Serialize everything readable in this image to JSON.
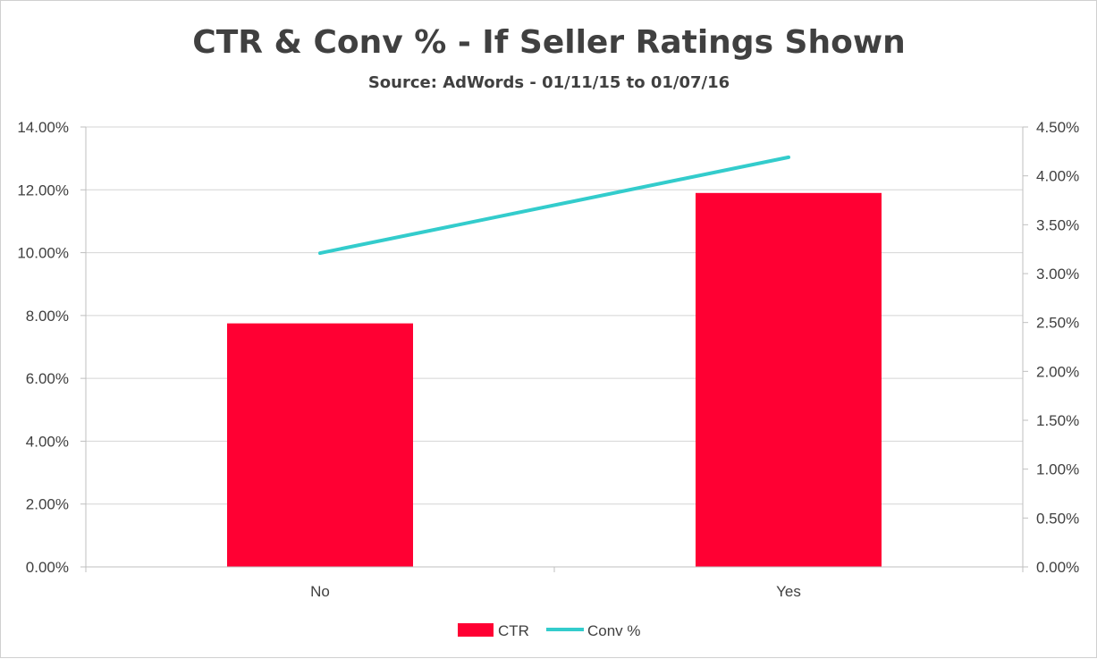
{
  "chart_data": {
    "type": "bar",
    "title": "CTR & Conv % - If Seller Ratings Shown",
    "subtitle": "Source: AdWords - 01/11/15 to 01/07/16",
    "categories": [
      "No",
      "Yes"
    ],
    "series": [
      {
        "name": "CTR",
        "type": "bar",
        "axis": "left",
        "values": [
          7.75,
          11.9
        ],
        "color": "#ff0033"
      },
      {
        "name": "Conv %",
        "type": "line",
        "axis": "right",
        "values": [
          3.21,
          4.19
        ],
        "color": "#33cccc"
      }
    ],
    "y_left": {
      "min": 0,
      "max": 14,
      "step": 2,
      "ticks": [
        "0.00%",
        "2.00%",
        "4.00%",
        "6.00%",
        "8.00%",
        "10.00%",
        "12.00%",
        "14.00%"
      ]
    },
    "y_right": {
      "min": 0,
      "max": 4.5,
      "step": 0.5,
      "ticks": [
        "0.00%",
        "0.50%",
        "1.00%",
        "1.50%",
        "2.00%",
        "2.50%",
        "3.00%",
        "3.50%",
        "4.00%",
        "4.50%"
      ]
    },
    "grid": true,
    "legend": "bottom-center"
  }
}
